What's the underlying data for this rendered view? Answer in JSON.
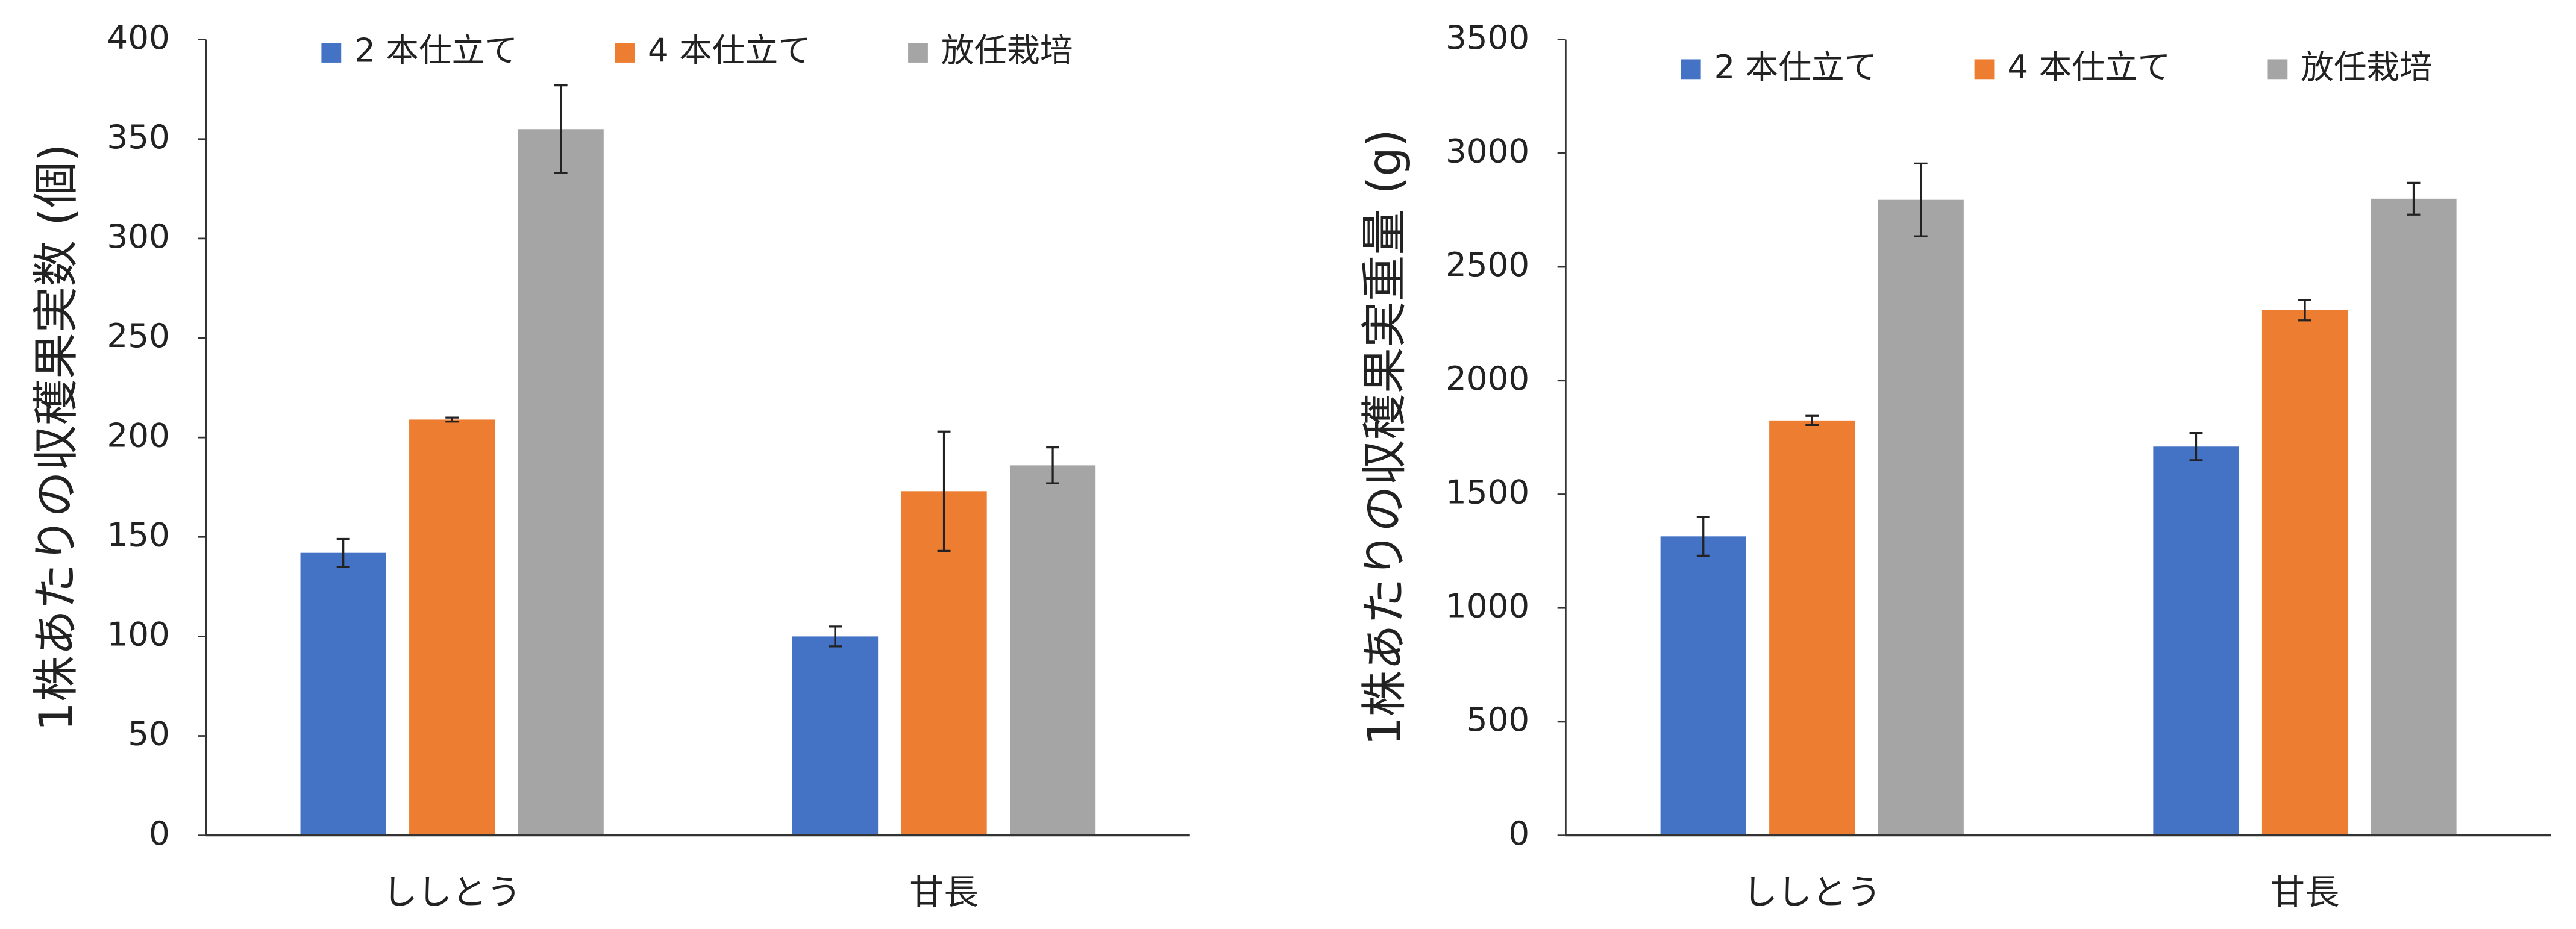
{
  "chart_data": [
    {
      "type": "bar",
      "y_label": "1株あたりの収穫果実数 (個)",
      "categories": [
        "ししとう",
        "甘長"
      ],
      "series": [
        {
          "name": "2 本仕立て",
          "color": "#4472c4",
          "values": [
            142,
            100
          ],
          "errors": [
            7,
            5
          ]
        },
        {
          "name": "4 本仕立て",
          "color": "#ed7d31",
          "values": [
            209,
            173
          ],
          "errors": [
            1,
            30
          ]
        },
        {
          "name": "放任栽培",
          "color": "#a5a5a5",
          "values": [
            355,
            186
          ],
          "errors": [
            22,
            9
          ]
        }
      ],
      "ylim": [
        0,
        400
      ],
      "yticks": [
        0,
        50,
        100,
        150,
        200,
        250,
        300,
        350,
        400
      ],
      "legend": "top"
    },
    {
      "type": "bar",
      "y_label": "1株あたりの収穫果実重量 (g)",
      "categories": [
        "ししとう",
        "甘長"
      ],
      "series": [
        {
          "name": "2 本仕立て",
          "color": "#4472c4",
          "values": [
            1315,
            1710
          ],
          "errors": [
            85,
            60
          ]
        },
        {
          "name": "4 本仕立て",
          "color": "#ed7d31",
          "values": [
            1825,
            2310
          ],
          "errors": [
            20,
            45
          ]
        },
        {
          "name": "放任栽培",
          "color": "#a5a5a5",
          "values": [
            2795,
            2800
          ],
          "errors": [
            160,
            70
          ]
        }
      ],
      "ylim": [
        0,
        3500
      ],
      "yticks": [
        0,
        500,
        1000,
        1500,
        2000,
        2500,
        3000,
        3500
      ],
      "legend": "top"
    }
  ]
}
